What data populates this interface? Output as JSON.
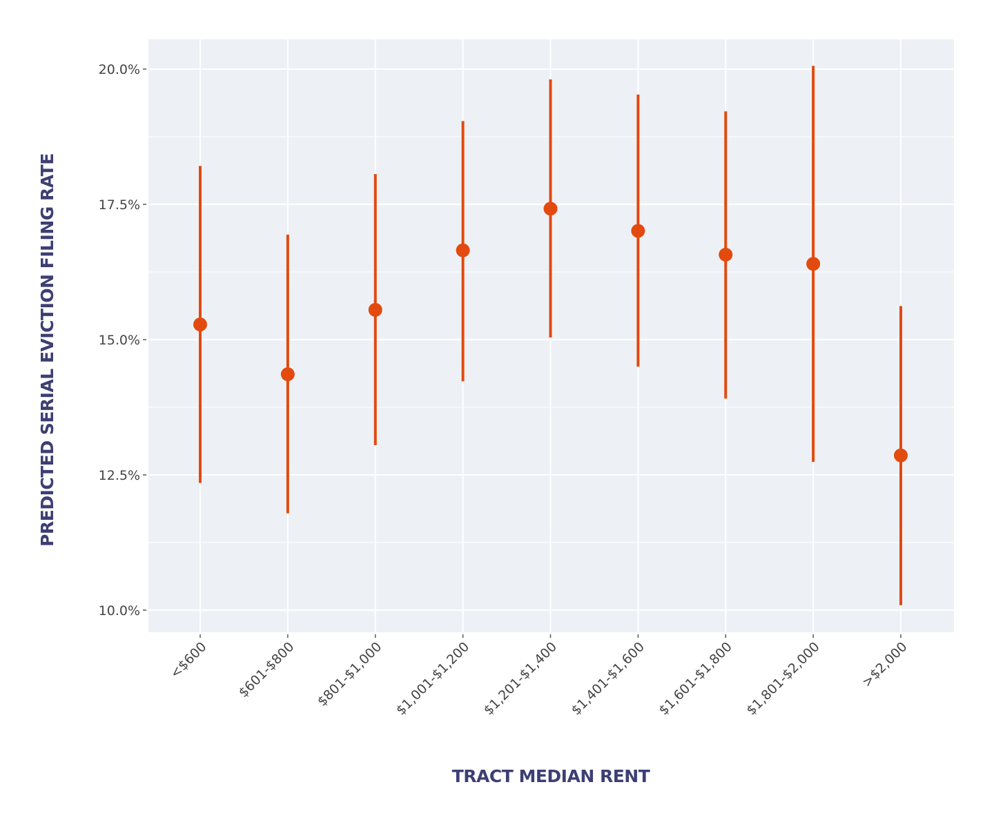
{
  "chart_data": {
    "type": "scatter",
    "subtype": "point-with-error-bars",
    "title": "",
    "xlabel": "TRACT MEDIAN RENT",
    "ylabel": "PREDICTED SERIAL EVICTION FILING RATE",
    "categories": [
      "<$600",
      "$601-$800",
      "$801-$1,000",
      "$1,001-$1,200",
      "$1,201-$1,400",
      "$1,401-$1,600",
      "$1,601-$1,800",
      "$1,801-$2,000",
      ">$2,000"
    ],
    "values": [
      15.28,
      14.36,
      15.55,
      16.65,
      17.42,
      17.01,
      16.57,
      16.4,
      12.86
    ],
    "lower": [
      12.35,
      11.79,
      13.05,
      14.23,
      15.04,
      14.5,
      13.91,
      12.74,
      10.09
    ],
    "upper": [
      18.21,
      16.94,
      18.06,
      19.04,
      19.81,
      19.53,
      19.22,
      20.06,
      15.62
    ],
    "ylim": [
      9.59,
      20.55
    ],
    "yticks": [
      10.0,
      12.5,
      15.0,
      17.5,
      20.0
    ],
    "ytick_labels": [
      "10.0%",
      "12.5%",
      "15.0%",
      "17.5%",
      "20.0%"
    ],
    "grid": true,
    "legend": "none",
    "colors": {
      "marker": "#e24a0f",
      "plot_bg": "#edf1f5",
      "grid": "#ffffff",
      "axis_label": "#3d3f73"
    }
  }
}
